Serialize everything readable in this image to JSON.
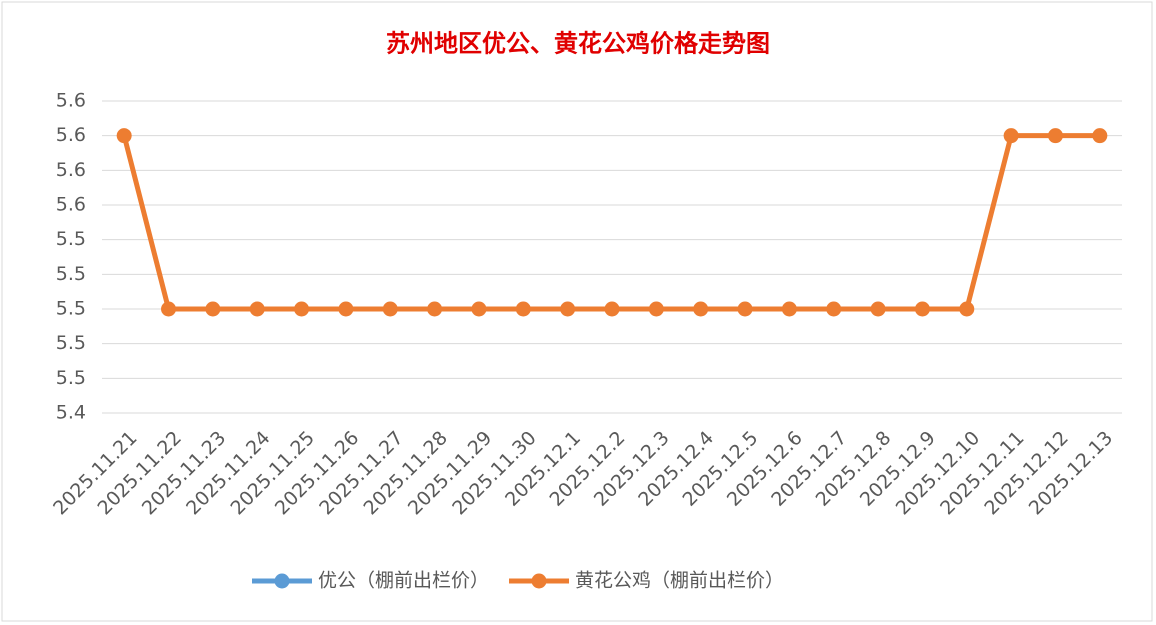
{
  "chart_data": {
    "type": "line",
    "title": "苏州地区优公、黄花公鸡价格走势图",
    "categories": [
      "2025.11.21",
      "2025.11.22",
      "2025.11.23",
      "2025.11.24",
      "2025.11.25",
      "2025.11.26",
      "2025.11.27",
      "2025.11.28",
      "2025.11.29",
      "2025.11.30",
      "2025.12.1",
      "2025.12.2",
      "2025.12.3",
      "2025.12.4",
      "2025.12.5",
      "2025.12.6",
      "2025.12.7",
      "2025.12.8",
      "2025.12.9",
      "2025.12.10",
      "2025.12.11",
      "2025.12.12",
      "2025.12.13"
    ],
    "series": [
      {
        "name": "优公（棚前出栏价）",
        "color": "#5b9bd5",
        "values": [
          null,
          null,
          null,
          null,
          null,
          null,
          null,
          null,
          null,
          null,
          null,
          null,
          null,
          null,
          null,
          null,
          null,
          null,
          null,
          null,
          null,
          null,
          null
        ]
      },
      {
        "name": "黄花公鸡（棚前出栏价）",
        "color": "#ed7d31",
        "values": [
          5.6,
          5.5,
          5.5,
          5.5,
          5.5,
          5.5,
          5.5,
          5.5,
          5.5,
          5.5,
          5.5,
          5.5,
          5.5,
          5.5,
          5.5,
          5.5,
          5.5,
          5.5,
          5.5,
          5.5,
          5.6,
          5.6,
          5.6
        ]
      }
    ],
    "ylim": [
      5.44,
      5.62
    ],
    "yticks": [
      {
        "value": 5.44,
        "label": "5.4"
      },
      {
        "value": 5.46,
        "label": "5.5"
      },
      {
        "value": 5.48,
        "label": "5.5"
      },
      {
        "value": 5.5,
        "label": "5.5"
      },
      {
        "value": 5.52,
        "label": "5.5"
      },
      {
        "value": 5.54,
        "label": "5.5"
      },
      {
        "value": 5.56,
        "label": "5.6"
      },
      {
        "value": 5.58,
        "label": "5.6"
      },
      {
        "value": 5.6,
        "label": "5.6"
      },
      {
        "value": 5.62,
        "label": "5.6"
      }
    ],
    "grid": true
  }
}
